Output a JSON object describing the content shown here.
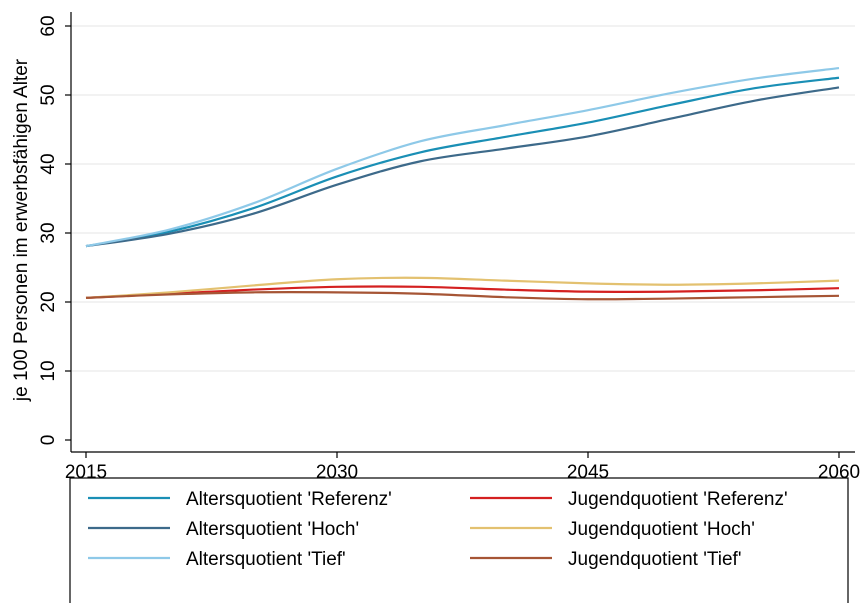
{
  "chart_data": {
    "type": "line",
    "title": "",
    "xlabel": "",
    "ylabel": "je 100 Personen im erwerbsfähigen Alter",
    "xlim": [
      2015,
      2060
    ],
    "ylim": [
      0,
      60
    ],
    "x_ticks": [
      2015,
      2030,
      2045,
      2060
    ],
    "y_ticks": [
      0,
      10,
      20,
      30,
      40,
      50,
      60
    ],
    "grid": true,
    "legend_position": "bottom",
    "series": [
      {
        "name": "Altersquotient 'Referenz'",
        "color": "#1a8fb5",
        "x": [
          2015,
          2020,
          2025,
          2030,
          2035,
          2040,
          2045,
          2050,
          2055,
          2060
        ],
        "y": [
          28.1,
          30.2,
          33.6,
          38.2,
          41.7,
          43.9,
          46.0,
          48.6,
          51.0,
          52.5
        ]
      },
      {
        "name": "Altersquotient 'Hoch'",
        "color": "#3d6a8a",
        "x": [
          2015,
          2020,
          2025,
          2030,
          2035,
          2040,
          2045,
          2050,
          2055,
          2060
        ],
        "y": [
          28.1,
          29.9,
          32.8,
          37.0,
          40.4,
          42.2,
          44.0,
          46.6,
          49.2,
          51.1
        ]
      },
      {
        "name": "Altersquotient 'Tief'",
        "color": "#8ec9e8",
        "x": [
          2015,
          2020,
          2025,
          2030,
          2035,
          2040,
          2045,
          2050,
          2055,
          2060
        ],
        "y": [
          28.1,
          30.5,
          34.3,
          39.3,
          43.3,
          45.6,
          47.8,
          50.3,
          52.4,
          53.9
        ]
      },
      {
        "name": "Jugendquotient 'Referenz'",
        "color": "#d42020",
        "x": [
          2015,
          2020,
          2025,
          2030,
          2035,
          2040,
          2045,
          2050,
          2055,
          2060
        ],
        "y": [
          20.6,
          21.2,
          21.8,
          22.2,
          22.2,
          21.8,
          21.5,
          21.5,
          21.7,
          22.0
        ]
      },
      {
        "name": "Jugendquotient 'Hoch'",
        "color": "#e3c170",
        "x": [
          2015,
          2020,
          2025,
          2030,
          2035,
          2040,
          2045,
          2050,
          2055,
          2060
        ],
        "y": [
          20.6,
          21.4,
          22.4,
          23.3,
          23.5,
          23.1,
          22.7,
          22.5,
          22.7,
          23.1
        ]
      },
      {
        "name": "Jugendquotient 'Tief'",
        "color": "#a65535",
        "x": [
          2015,
          2020,
          2025,
          2030,
          2035,
          2040,
          2045,
          2050,
          2055,
          2060
        ],
        "y": [
          20.6,
          21.1,
          21.4,
          21.4,
          21.2,
          20.7,
          20.4,
          20.5,
          20.7,
          20.9
        ]
      }
    ]
  }
}
